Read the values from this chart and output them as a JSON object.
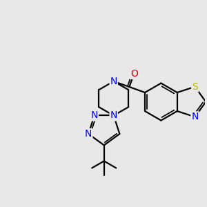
{
  "background_color": "#e8e8e8",
  "bond_color": "#000000",
  "N_color": "#0000ff",
  "O_color": "#dd0000",
  "S_color": "#bbbb00",
  "line_width": 1.6,
  "font_size": 10,
  "figsize": [
    3.0,
    3.0
  ],
  "dpi": 100,
  "xlim": [
    -2.8,
    3.2
  ],
  "ylim": [
    -2.2,
    2.2
  ]
}
